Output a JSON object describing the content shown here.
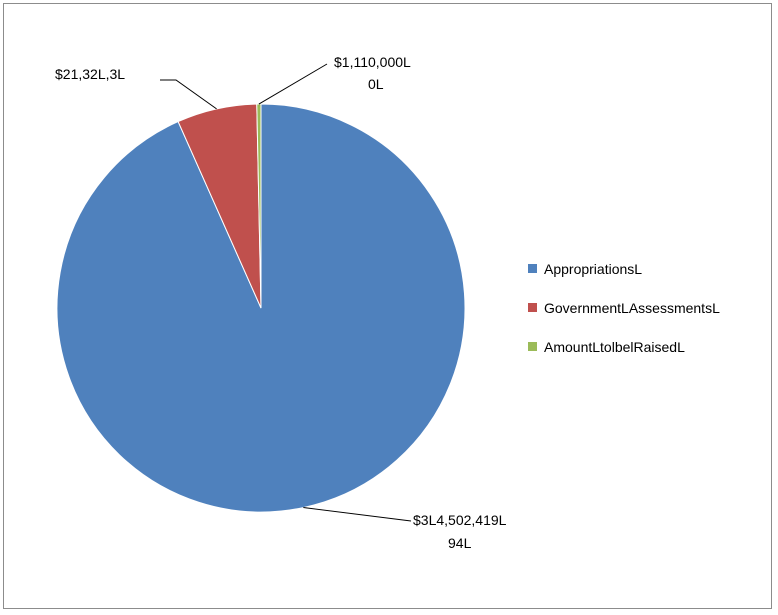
{
  "chart_data": {
    "type": "pie",
    "title": "",
    "slices": [
      {
        "name": "AppropriationsL",
        "value": 314502419,
        "label_line1": "$3L4,502,419L",
        "label_line2": "94L",
        "color": "#4f81bd"
      },
      {
        "name": "GovernmentLAssessmentsL",
        "value": 21323000,
        "label_line1": "$21,32L,3L",
        "label_line2": "",
        "color": "#c0504d"
      },
      {
        "name": "AmountLtolbelRaisedL",
        "value": 1110000,
        "label_line1": "$1,110,000L",
        "label_line2": "0L",
        "color": "#9bbb59"
      }
    ],
    "legend": {
      "position": "right",
      "entries": [
        "AppropriationsL",
        "GovernmentLAssessmentsL",
        "AmountLtolbelRaisedL"
      ]
    }
  }
}
